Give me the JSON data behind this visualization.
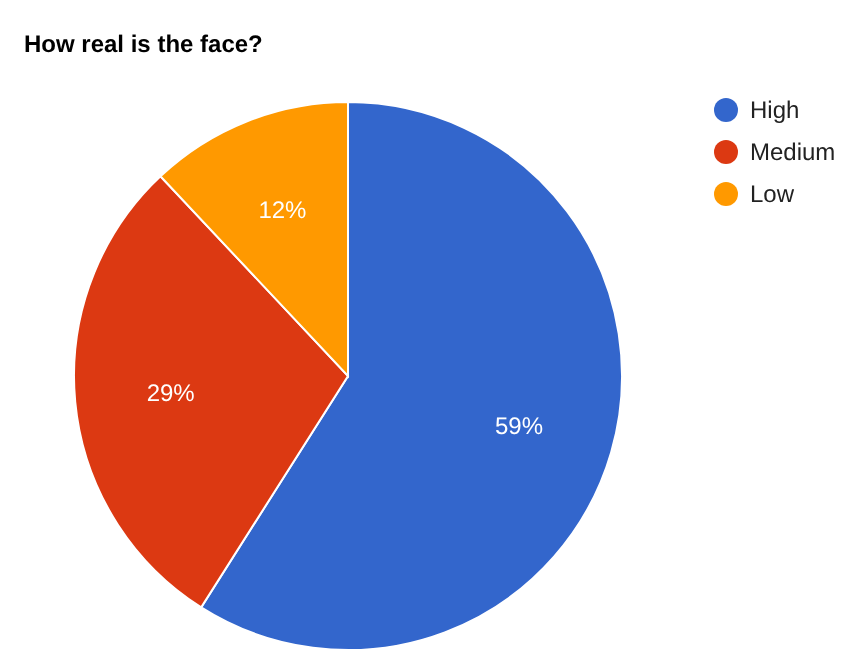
{
  "chart_data": {
    "type": "pie",
    "title": "How real is the face?",
    "categories": [
      "High",
      "Medium",
      "Low"
    ],
    "values": [
      59,
      29,
      12
    ],
    "colors": [
      "#3366cc",
      "#dc3912",
      "#ff9900"
    ],
    "value_labels": [
      "59%",
      "29%",
      "12%"
    ],
    "legend": "top right"
  }
}
